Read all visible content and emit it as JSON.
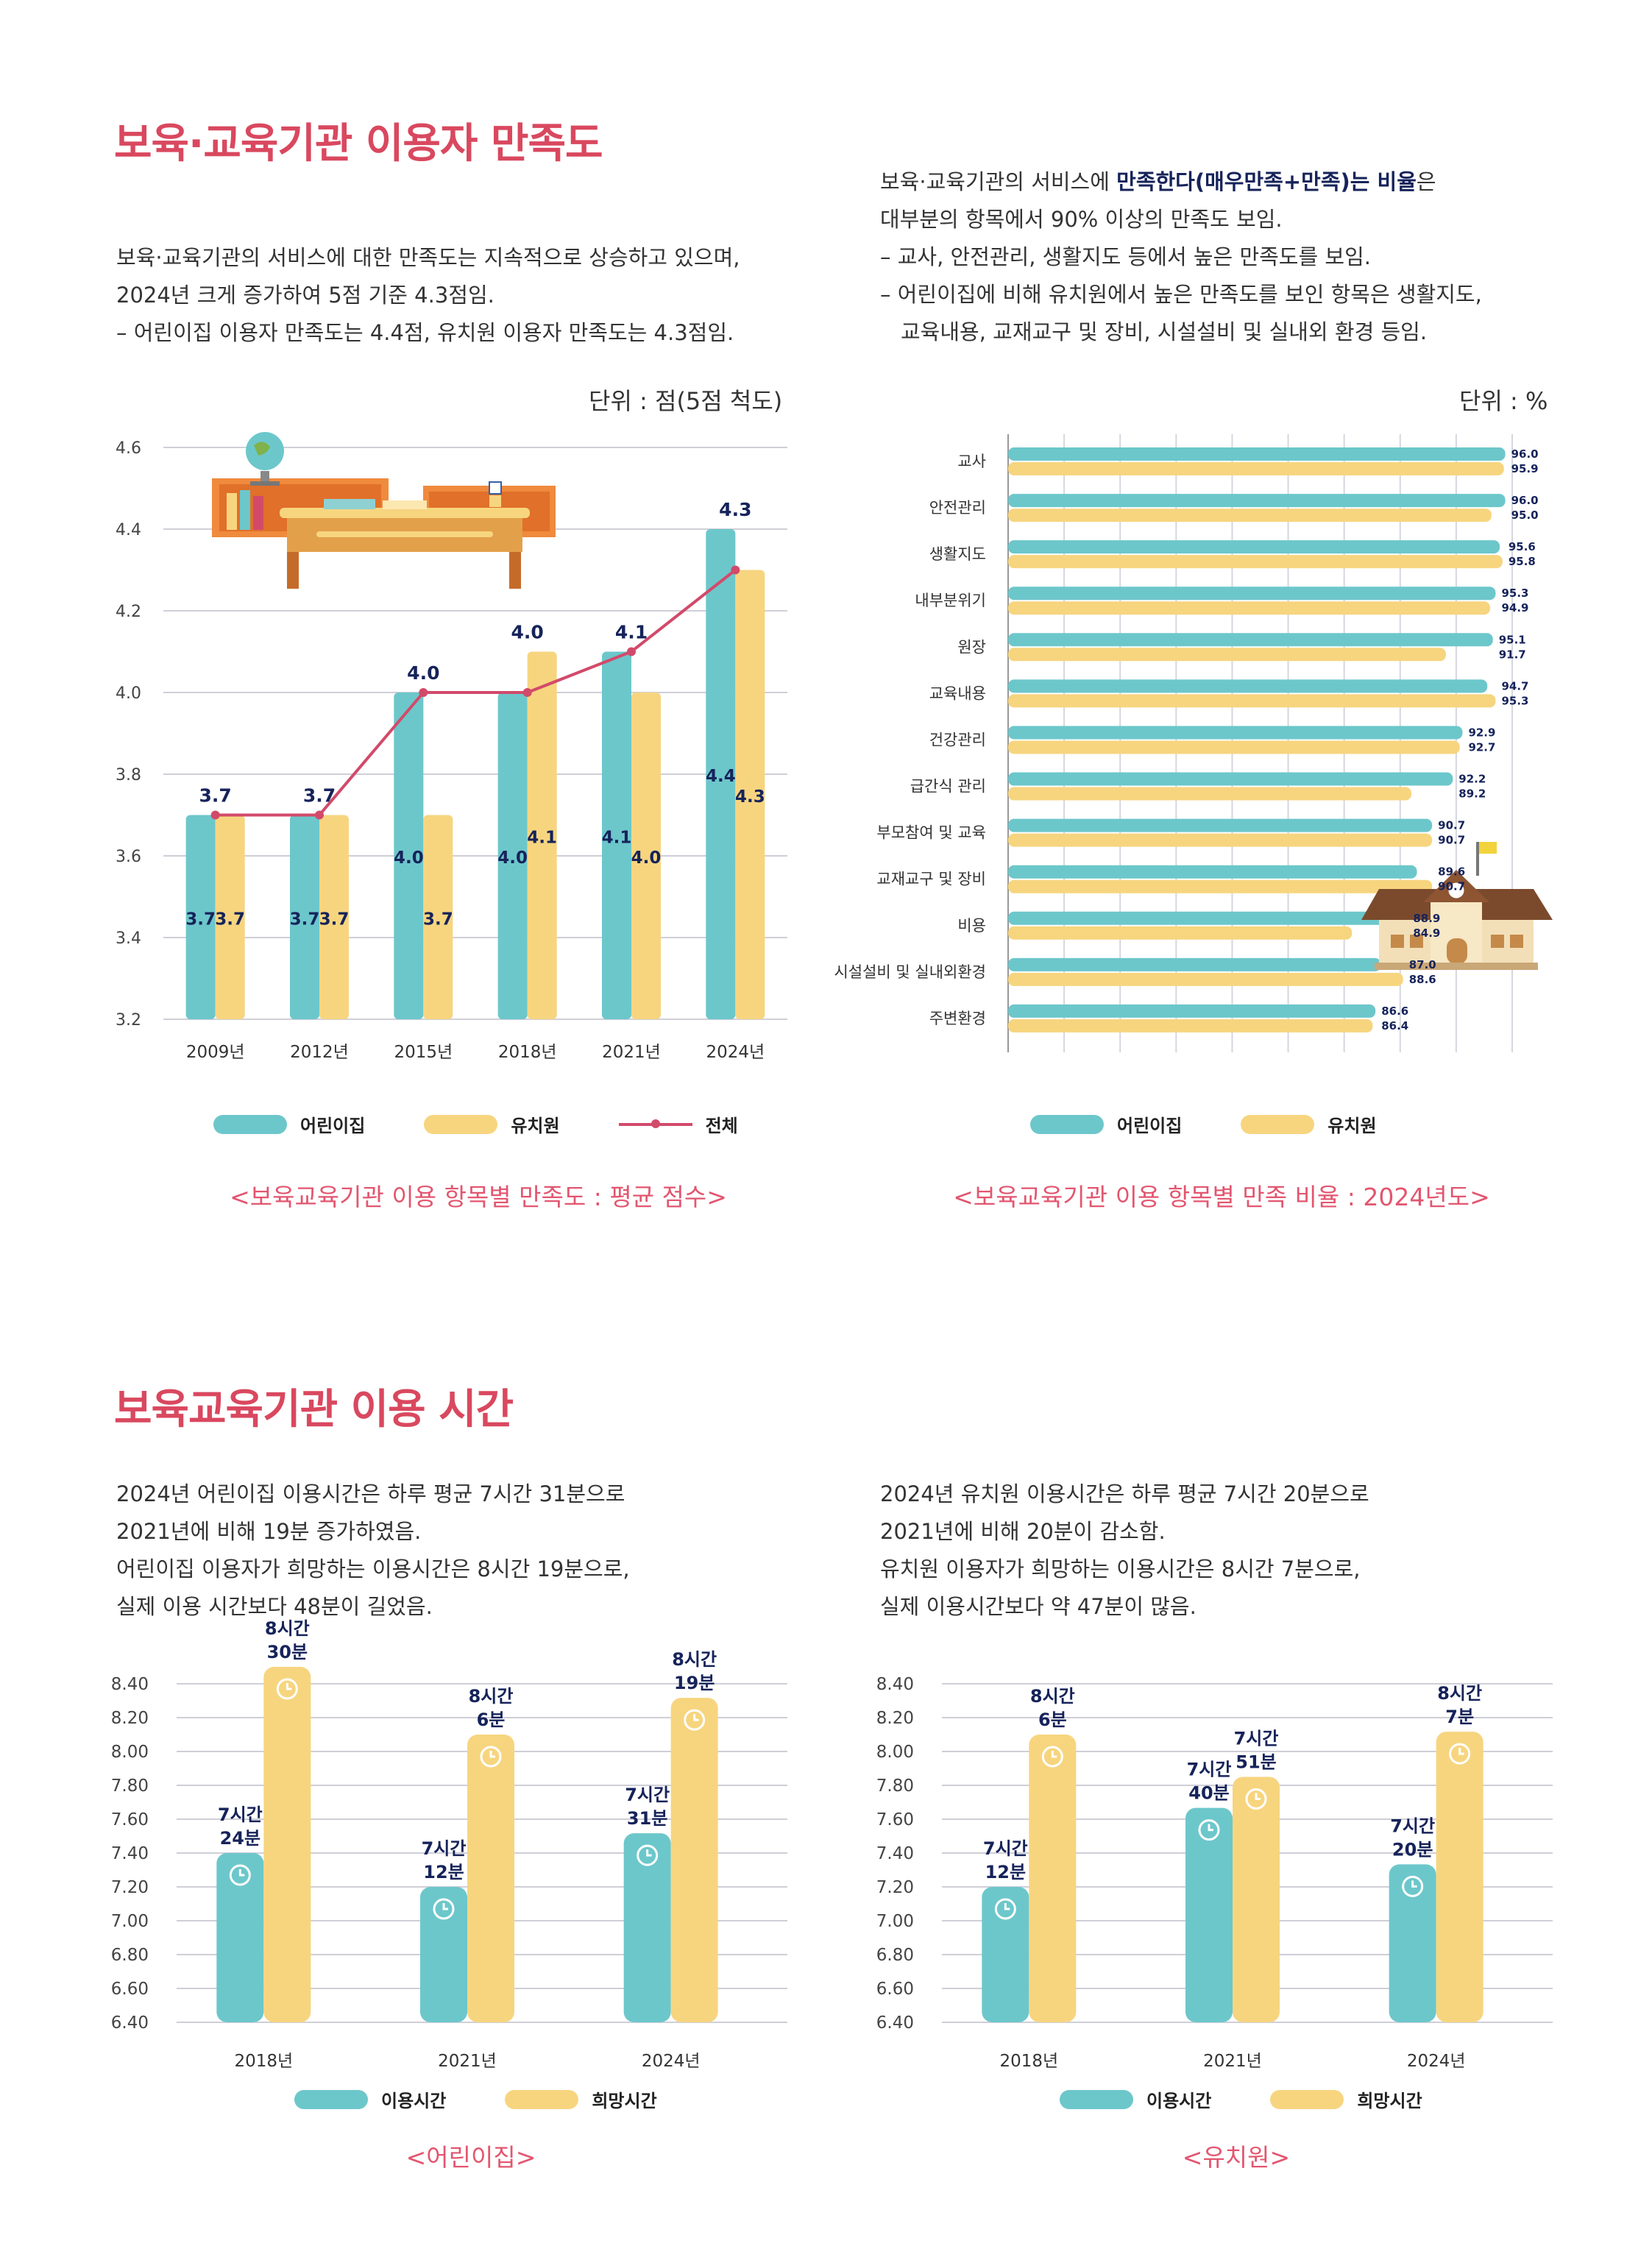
{
  "colors": {
    "teal": "#6cc7cb",
    "yellow": "#f7d57f",
    "pink": "#d24a6a",
    "title": "#d9485f",
    "navy": "#16235a"
  },
  "section1": {
    "title": "보육·교육기관 이용자 만족도",
    "left_text": [
      "보육·교육기관의 서비스에 대한 만족도는 지속적으로 상승하고 있으며,",
      "2024년 크게 증가하여 5점 기준 4.3점임.",
      "– 어린이집 이용자 만족도는 4.4점, 유치원 이용자 만족도는 4.3점임."
    ],
    "right_text": {
      "line1_pre": "보육·교육기관의 서비스에 ",
      "line1_bold": "만족한다(매우만족+만족)는 비율",
      "line1_post": "은",
      "line2": "대부분의 항목에서 90% 이상의 만족도 보임.",
      "line3": "– 교사, 안전관리, 생활지도 등에서 높은 만족도를 보임.",
      "line4": "– 어린이집에 비해 유치원에서 높은 만족도를 보인 항목은 생활지도,",
      "line5": "교육내용, 교재교구 및 장비, 시설설비 및 실내외 환경 등임."
    },
    "unit_left": "단위 : 점(5점 척도)",
    "unit_right": "단위 : %",
    "caption_left": "<보육교육기관 이용 항목별 만족도 : 평균 점수>",
    "caption_right": "<보육교육기관 이용 항목별 만족 비율 : 2024년도>",
    "legend_left": [
      "어린이집",
      "유치원",
      "전체"
    ],
    "legend_right": [
      "어린이집",
      "유치원"
    ]
  },
  "section2": {
    "title": "보육교육기관 이용 시간",
    "left_text": [
      "2024년 어린이집 이용시간은 하루 평균 7시간 31분으로",
      "2021년에 비해 19분 증가하였음.",
      "어린이집 이용자가 희망하는 이용시간은 8시간 19분으로,",
      "실제 이용 시간보다 48분이 길었음."
    ],
    "right_text": [
      "2024년 유치원 이용시간은 하루 평균 7시간 20분으로",
      "2021년에 비해 20분이 감소함.",
      "유치원 이용자가 희망하는 이용시간은 8시간 7분으로,",
      "실제 이용시간보다 약 47분이 많음."
    ],
    "legend": [
      "이용시간",
      "희망시간"
    ],
    "caption_left": "<어린이집>",
    "caption_right": "<유치원>"
  },
  "chart_data": [
    {
      "type": "bar",
      "title": "<보육교육기관 이용 항목별 만족도 : 평균 점수>",
      "categories": [
        "2009년",
        "2012년",
        "2015년",
        "2018년",
        "2021년",
        "2024년"
      ],
      "ylim": [
        3.2,
        4.6
      ],
      "yticks": [
        "3.2",
        "3.4",
        "3.6",
        "3.8",
        "4.0",
        "4.2",
        "4.4",
        "4.6"
      ],
      "series": [
        {
          "name": "어린이집",
          "values": [
            3.7,
            3.7,
            4.0,
            4.0,
            4.1,
            4.4
          ],
          "labels": [
            "3.7",
            "3.7",
            "4.0",
            "4.0",
            "4.1",
            "4.4"
          ]
        },
        {
          "name": "유치원",
          "values": [
            3.7,
            3.7,
            3.7,
            4.1,
            4.0,
            4.3
          ],
          "labels": [
            "3.7",
            "3.7",
            "3.7",
            "4.1",
            "4.0",
            "4.3"
          ]
        },
        {
          "name": "전체",
          "type": "line",
          "values": [
            3.7,
            3.7,
            4.0,
            4.0,
            4.1,
            4.3
          ],
          "labels": [
            "3.7",
            "3.7",
            "4.0",
            "4.0",
            "4.1",
            "4.3"
          ]
        }
      ]
    },
    {
      "type": "bar",
      "orientation": "horizontal",
      "title": "<보육교육기관 이용 항목별 만족 비율 : 2024년도>",
      "categories": [
        "교사",
        "안전관리",
        "생활지도",
        "내부분위기",
        "원장",
        "교육내용",
        "건강관리",
        "급간식 관리",
        "부모참여 및 교육",
        "교재교구 및 장비",
        "비용",
        "시설설비 및 실내외환경",
        "주변환경"
      ],
      "xlim": [
        0,
        100
      ],
      "series": [
        {
          "name": "어린이집",
          "values": [
            96.0,
            96.0,
            95.6,
            95.3,
            95.1,
            94.7,
            92.9,
            92.2,
            90.7,
            89.6,
            88.9,
            87.0,
            86.6
          ],
          "labels": [
            "96.0",
            "96.0",
            "95.6",
            "95.3",
            "95.1",
            "94.7",
            "92.9",
            "92.2",
            "90.7",
            "89.6",
            "88.9",
            "87.0",
            "86.6"
          ]
        },
        {
          "name": "유치원",
          "values": [
            95.9,
            95.0,
            95.8,
            94.9,
            91.7,
            95.3,
            92.7,
            89.2,
            90.7,
            90.7,
            84.9,
            88.6,
            86.4
          ],
          "labels": [
            "95.9",
            "95.0",
            "95.8",
            "94.9",
            "91.7",
            "95.3",
            "92.7",
            "89.2",
            "90.7",
            "90.7",
            "84.9",
            "88.6",
            "86.4"
          ]
        }
      ]
    },
    {
      "type": "bar",
      "title": "<어린이집>",
      "categories": [
        "2018년",
        "2021년",
        "2024년"
      ],
      "ylim": [
        6.4,
        8.4
      ],
      "yticks": [
        "6.40",
        "6.60",
        "6.80",
        "7.00",
        "7.20",
        "7.40",
        "7.60",
        "7.80",
        "8.00",
        "8.20",
        "8.40"
      ],
      "series": [
        {
          "name": "이용시간",
          "values": [
            7.4,
            7.2,
            7.517
          ],
          "labels": [
            [
              "7시간",
              "24분"
            ],
            [
              "7시간",
              "12분"
            ],
            [
              "7시간",
              "31분"
            ]
          ]
        },
        {
          "name": "희망시간",
          "values": [
            8.5,
            8.1,
            8.317
          ],
          "labels": [
            [
              "8시간",
              "30분"
            ],
            [
              "8시간",
              "6분"
            ],
            [
              "8시간",
              "19분"
            ]
          ]
        }
      ]
    },
    {
      "type": "bar",
      "title": "<유치원>",
      "categories": [
        "2018년",
        "2021년",
        "2024년"
      ],
      "ylim": [
        6.4,
        8.4
      ],
      "yticks": [
        "6.40",
        "6.60",
        "6.80",
        "7.00",
        "7.20",
        "7.40",
        "7.60",
        "7.80",
        "8.00",
        "8.20",
        "8.40"
      ],
      "series": [
        {
          "name": "이용시간",
          "values": [
            7.2,
            7.667,
            7.333
          ],
          "labels": [
            [
              "7시간",
              "12분"
            ],
            [
              "7시간",
              "40분"
            ],
            [
              "7시간",
              "20분"
            ]
          ]
        },
        {
          "name": "희망시간",
          "values": [
            8.1,
            7.85,
            8.117
          ],
          "labels": [
            [
              "8시간",
              "6분"
            ],
            [
              "7시간",
              "51분"
            ],
            [
              "8시간",
              "7분"
            ]
          ]
        }
      ]
    }
  ]
}
